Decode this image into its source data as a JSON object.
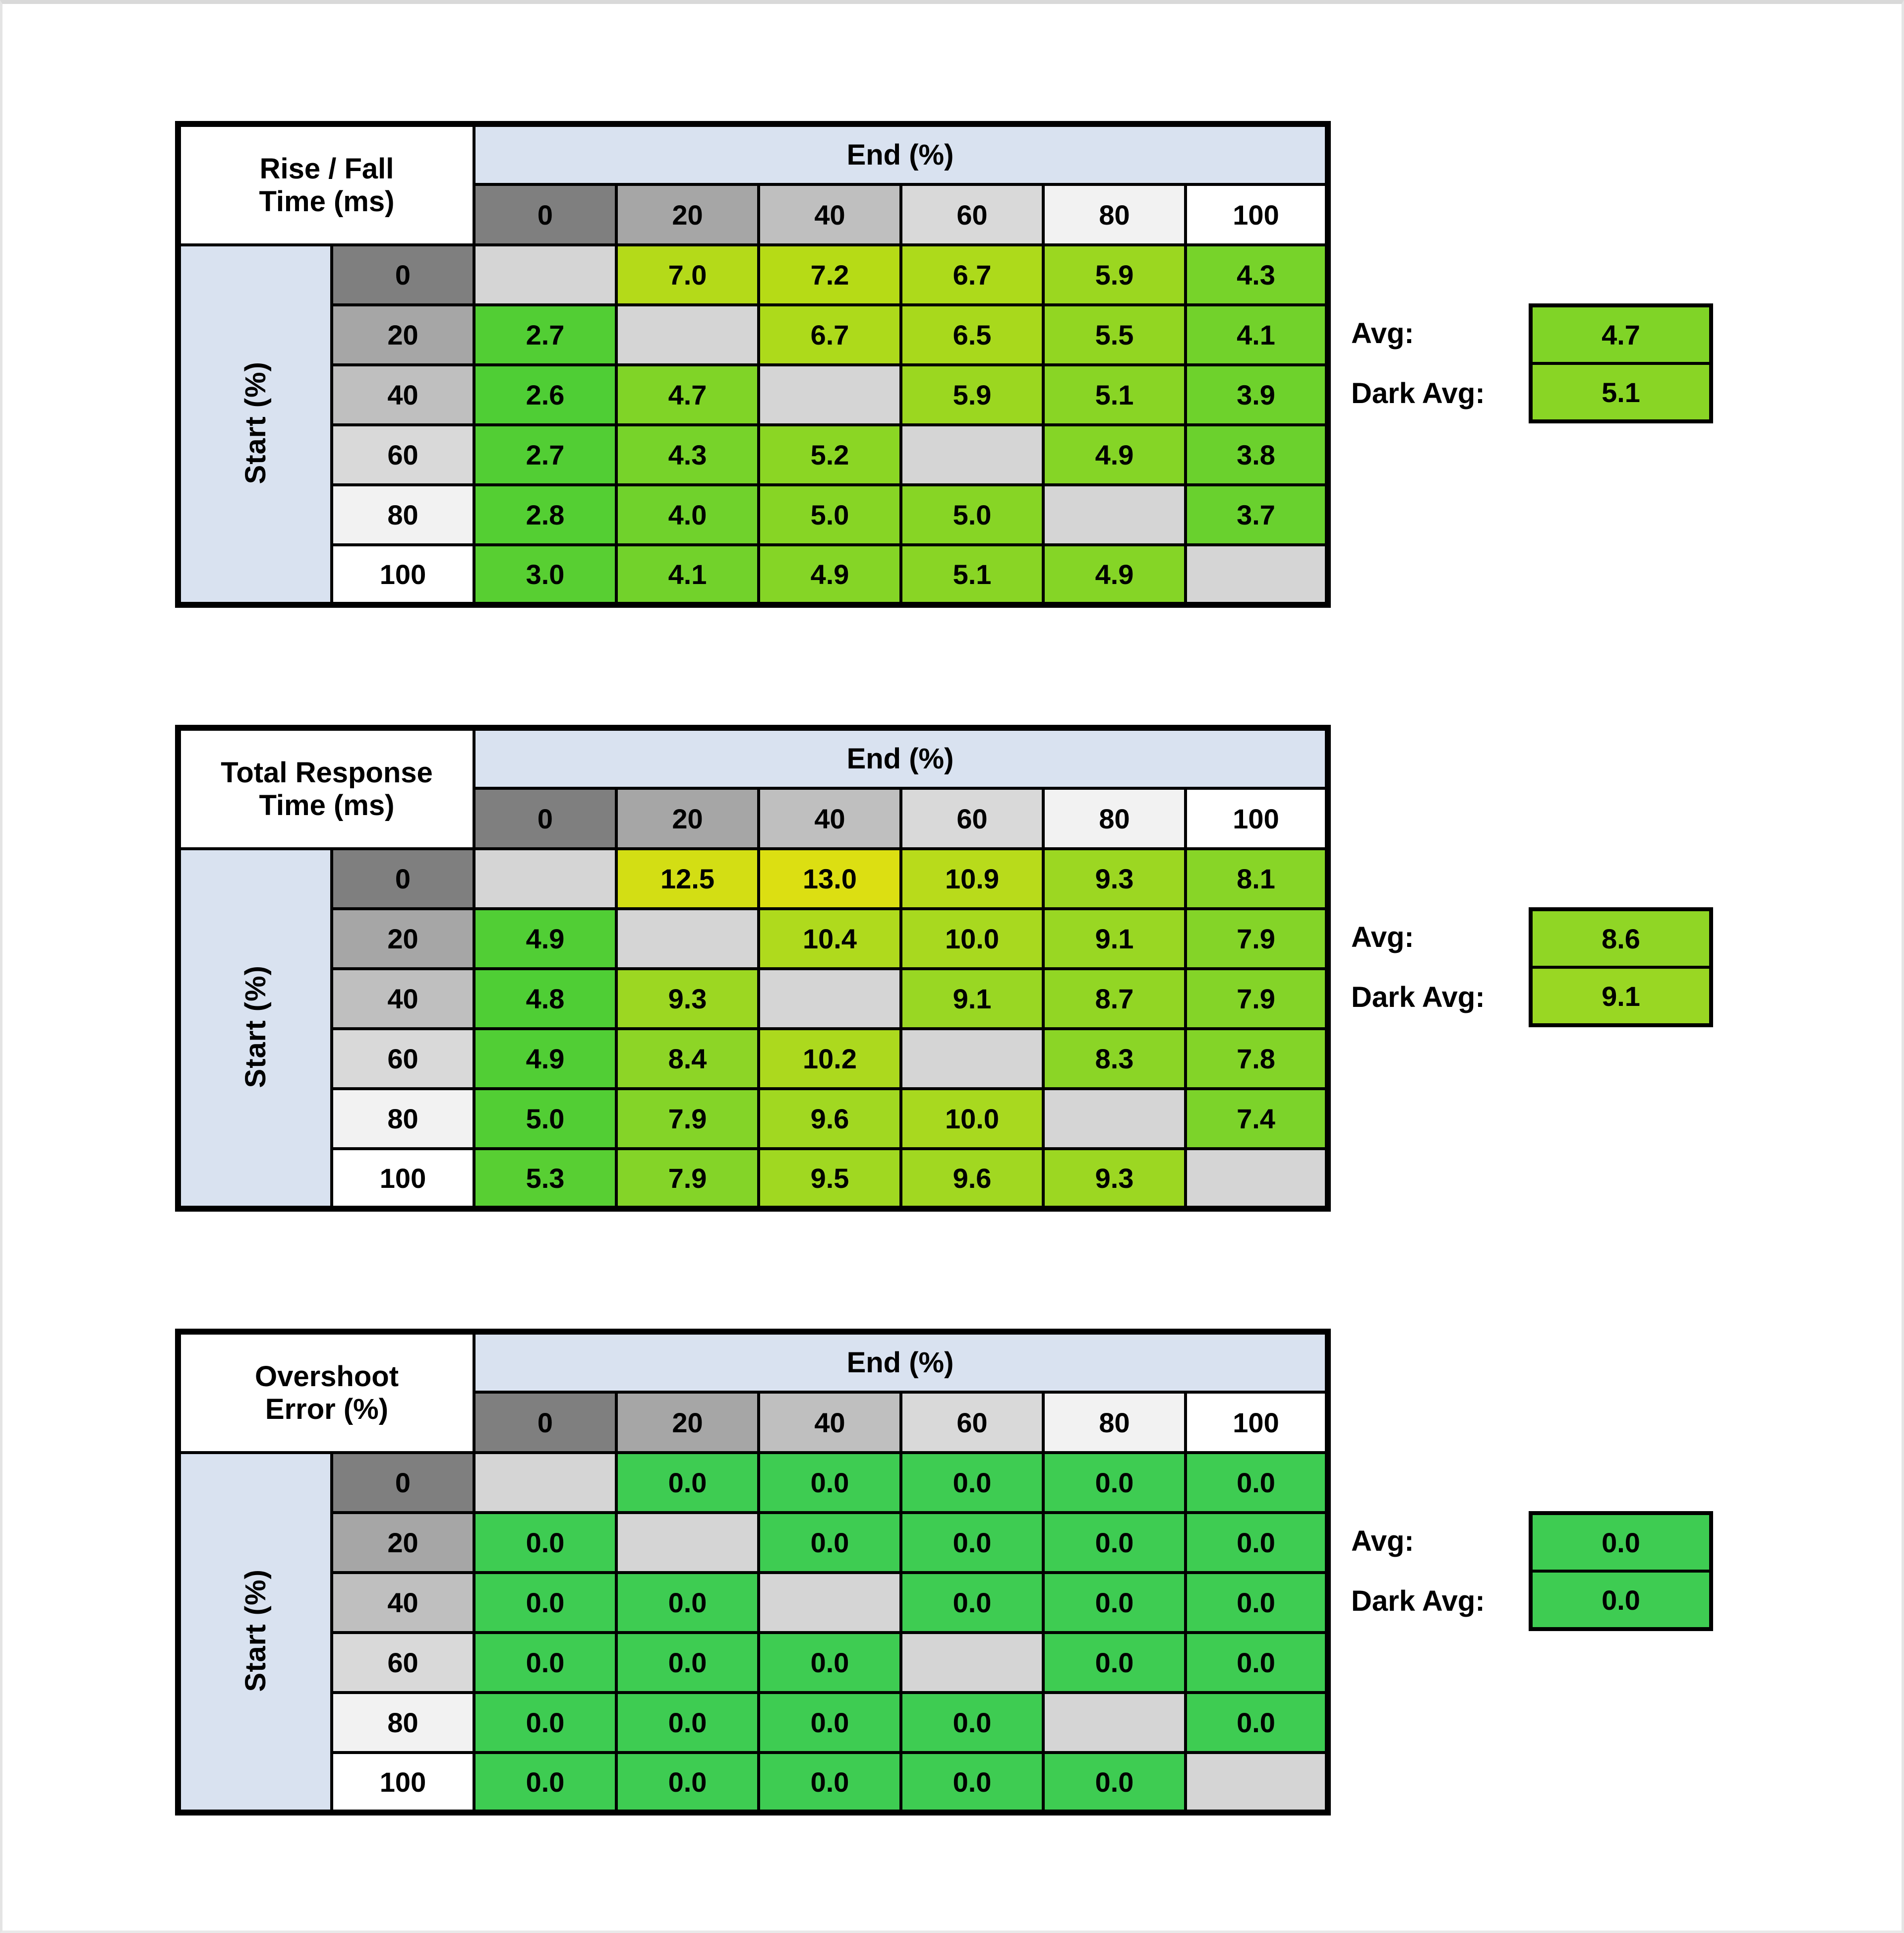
{
  "style_colors": {
    "header_grays": [
      "#7f7f7f",
      "#a6a6a6",
      "#bfbfbf",
      "#d9d9d9",
      "#f2f2f2",
      "#ffffff"
    ],
    "axis_band_blue": "#d9e2f0",
    "diagonal_gray": "#d5d5d5",
    "border_black": "#000000",
    "page_background": "#ffffff"
  },
  "chart_data": [
    {
      "type": "heatmap",
      "id": "rise-fall-time",
      "title_lines": [
        "Rise / Fall",
        "Time (ms)"
      ],
      "x_axis_label": "End (%)",
      "y_axis_label": "Start (%)",
      "x_ticks": [
        "0",
        "20",
        "40",
        "60",
        "80",
        "100"
      ],
      "y_ticks": [
        "0",
        "20",
        "40",
        "60",
        "80",
        "100"
      ],
      "values": [
        [
          null,
          "7.0",
          "7.2",
          "6.7",
          "5.9",
          "4.3"
        ],
        [
          "2.7",
          null,
          "6.7",
          "6.5",
          "5.5",
          "4.1"
        ],
        [
          "2.6",
          "4.7",
          null,
          "5.9",
          "5.1",
          "3.9"
        ],
        [
          "2.7",
          "4.3",
          "5.2",
          null,
          "4.9",
          "3.8"
        ],
        [
          "2.8",
          "4.0",
          "5.0",
          "5.0",
          null,
          "3.7"
        ],
        [
          "3.0",
          "4.1",
          "4.9",
          "5.1",
          "4.9",
          null
        ]
      ],
      "cell_colors": [
        [
          null,
          "#b4da19",
          "#b6db16",
          "#adda1b",
          "#9bd720",
          "#77d32a"
        ],
        [
          "#52ce34",
          null,
          "#adda1b",
          "#a8d91c",
          "#92d622",
          "#72d22b"
        ],
        [
          "#4fce35",
          "#80d427",
          null,
          "#9bd720",
          "#89d525",
          "#6ed22c"
        ],
        [
          "#52ce34",
          "#77d32a",
          "#8bd624",
          null,
          "#85d526",
          "#6bd12d"
        ],
        [
          "#54cf33",
          "#70d22c",
          "#87d525",
          "#87d525",
          null,
          "#69d12e"
        ],
        [
          "#58cf32",
          "#72d22b",
          "#85d526",
          "#89d525",
          "#85d526",
          null
        ]
      ],
      "avg_label": "Avg:",
      "avg": "4.7",
      "avg_color": "#80d427",
      "dark_avg_label": "Dark Avg:",
      "dark_avg": "5.1",
      "dark_avg_color": "#89d525"
    },
    {
      "type": "heatmap",
      "id": "total-response-time",
      "title_lines": [
        "Total Response",
        "Time (ms)"
      ],
      "x_axis_label": "End (%)",
      "y_axis_label": "Start (%)",
      "x_ticks": [
        "0",
        "20",
        "40",
        "60",
        "80",
        "100"
      ],
      "y_ticks": [
        "0",
        "20",
        "40",
        "60",
        "80",
        "100"
      ],
      "values": [
        [
          null,
          "12.5",
          "13.0",
          "10.9",
          "9.3",
          "8.1"
        ],
        [
          "4.9",
          null,
          "10.4",
          "10.0",
          "9.1",
          "7.9"
        ],
        [
          "4.8",
          "9.3",
          null,
          "9.1",
          "8.7",
          "7.9"
        ],
        [
          "4.9",
          "8.4",
          "10.2",
          null,
          "8.3",
          "7.8"
        ],
        [
          "5.0",
          "7.9",
          "9.6",
          "10.0",
          null,
          "7.4"
        ],
        [
          "5.3",
          "7.9",
          "9.5",
          "9.6",
          "9.3",
          null
        ]
      ],
      "cell_colors": [
        [
          null,
          "#d3de14",
          "#dcdf12",
          "#b8db1b",
          "#9cd722",
          "#88d527"
        ],
        [
          "#51ce35",
          null,
          "#afda1d",
          "#a8d91f",
          "#99d723",
          "#84d428"
        ],
        [
          "#4fce35",
          "#9cd722",
          null,
          "#99d723",
          "#92d624",
          "#84d428"
        ],
        [
          "#51ce35",
          "#8dd526",
          "#acd91e",
          null,
          "#8bd526",
          "#83d428"
        ],
        [
          "#52ce34",
          "#84d428",
          "#a1d821",
          "#a8d91f",
          null,
          "#7cd32a"
        ],
        [
          "#58cf33",
          "#84d428",
          "#a0d821",
          "#a1d821",
          "#9cd722",
          null
        ]
      ],
      "avg_label": "Avg:",
      "avg": "8.6",
      "avg_color": "#90d625",
      "dark_avg_label": "Dark Avg:",
      "dark_avg": "9.1",
      "dark_avg_color": "#99d723"
    },
    {
      "type": "heatmap",
      "id": "overshoot-error",
      "title_lines": [
        "Overshoot",
        "Error (%)"
      ],
      "x_axis_label": "End (%)",
      "y_axis_label": "Start (%)",
      "x_ticks": [
        "0",
        "20",
        "40",
        "60",
        "80",
        "100"
      ],
      "y_ticks": [
        "0",
        "20",
        "40",
        "60",
        "80",
        "100"
      ],
      "values": [
        [
          null,
          "0.0",
          "0.0",
          "0.0",
          "0.0",
          "0.0"
        ],
        [
          "0.0",
          null,
          "0.0",
          "0.0",
          "0.0",
          "0.0"
        ],
        [
          "0.0",
          "0.0",
          null,
          "0.0",
          "0.0",
          "0.0"
        ],
        [
          "0.0",
          "0.0",
          "0.0",
          null,
          "0.0",
          "0.0"
        ],
        [
          "0.0",
          "0.0",
          "0.0",
          "0.0",
          null,
          "0.0"
        ],
        [
          "0.0",
          "0.0",
          "0.0",
          "0.0",
          "0.0",
          null
        ]
      ],
      "cell_colors": [
        [
          null,
          "#3ecc52",
          "#3ecc52",
          "#3ecc52",
          "#3ecc52",
          "#3ecc52"
        ],
        [
          "#3ecc52",
          null,
          "#3ecc52",
          "#3ecc52",
          "#3ecc52",
          "#3ecc52"
        ],
        [
          "#3ecc52",
          "#3ecc52",
          null,
          "#3ecc52",
          "#3ecc52",
          "#3ecc52"
        ],
        [
          "#3ecc52",
          "#3ecc52",
          "#3ecc52",
          null,
          "#3ecc52",
          "#3ecc52"
        ],
        [
          "#3ecc52",
          "#3ecc52",
          "#3ecc52",
          "#3ecc52",
          null,
          "#3ecc52"
        ],
        [
          "#3ecc52",
          "#3ecc52",
          "#3ecc52",
          "#3ecc52",
          "#3ecc52",
          null
        ]
      ],
      "avg_label": "Avg:",
      "avg": "0.0",
      "avg_color": "#3ecc52",
      "dark_avg_label": "Dark Avg:",
      "dark_avg": "0.0",
      "dark_avg_color": "#3ecc52"
    }
  ],
  "layout": {
    "panel_tops": [
      236,
      1454,
      2672
    ]
  }
}
